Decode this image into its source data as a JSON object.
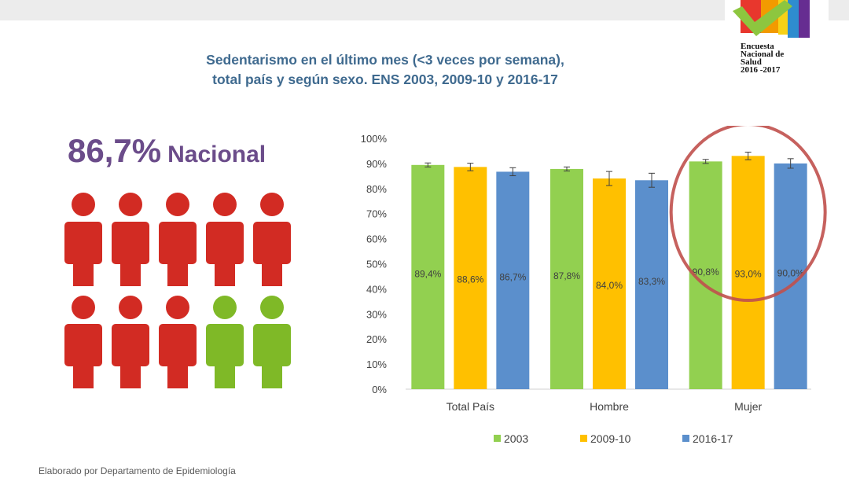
{
  "logo": {
    "line1": "Encuesta",
    "line2": "Nacional de",
    "line3": "Salud",
    "line4": "2016 -2017",
    "colors": [
      "#e8372d",
      "#f29a00",
      "#f7d117",
      "#8dc63f",
      "#2e8ccf",
      "#662d91"
    ]
  },
  "title": {
    "line1": "Sedentarismo en el último mes (<3 veces por semana),",
    "line2": "total país y según sexo. ENS 2003, 2009-10 y 2016-17"
  },
  "headline": {
    "percent": "86,7%",
    "label": "Nacional"
  },
  "people": {
    "total": 10,
    "sedentary": 8,
    "colors": {
      "sedentary": "#d22b23",
      "active": "#7fb927"
    }
  },
  "chart_data": {
    "type": "bar",
    "categories": [
      "Total País",
      "Hombre",
      "Mujer"
    ],
    "series": [
      {
        "name": "2003",
        "color": "#92d050",
        "values": [
          89.4,
          87.8,
          90.8
        ],
        "labels": [
          "89,4%",
          "87,8%",
          "90,8%"
        ],
        "errors": [
          0.8,
          0.8,
          0.8
        ]
      },
      {
        "name": "2009-10",
        "color": "#ffc000",
        "values": [
          88.6,
          84.0,
          93.0
        ],
        "labels": [
          "88,6%",
          "84,0%",
          "93,0%"
        ],
        "errors": [
          1.5,
          2.8,
          1.5
        ]
      },
      {
        "name": "2016-17",
        "color": "#5b8fcc",
        "values": [
          86.7,
          83.3,
          90.0
        ],
        "labels": [
          "86,7%",
          "83,3%",
          "90,0%"
        ],
        "errors": [
          1.6,
          2.8,
          1.9
        ]
      }
    ],
    "ylim": [
      0,
      100
    ],
    "yticks": [
      "0%",
      "10%",
      "20%",
      "30%",
      "40%",
      "50%",
      "60%",
      "70%",
      "80%",
      "90%",
      "100%"
    ],
    "legend_position": "bottom",
    "highlight": {
      "category": "Mujer",
      "color": "#c0504d"
    }
  },
  "footer": {
    "source": "Elaborado por Departamento de Epidemiología"
  }
}
